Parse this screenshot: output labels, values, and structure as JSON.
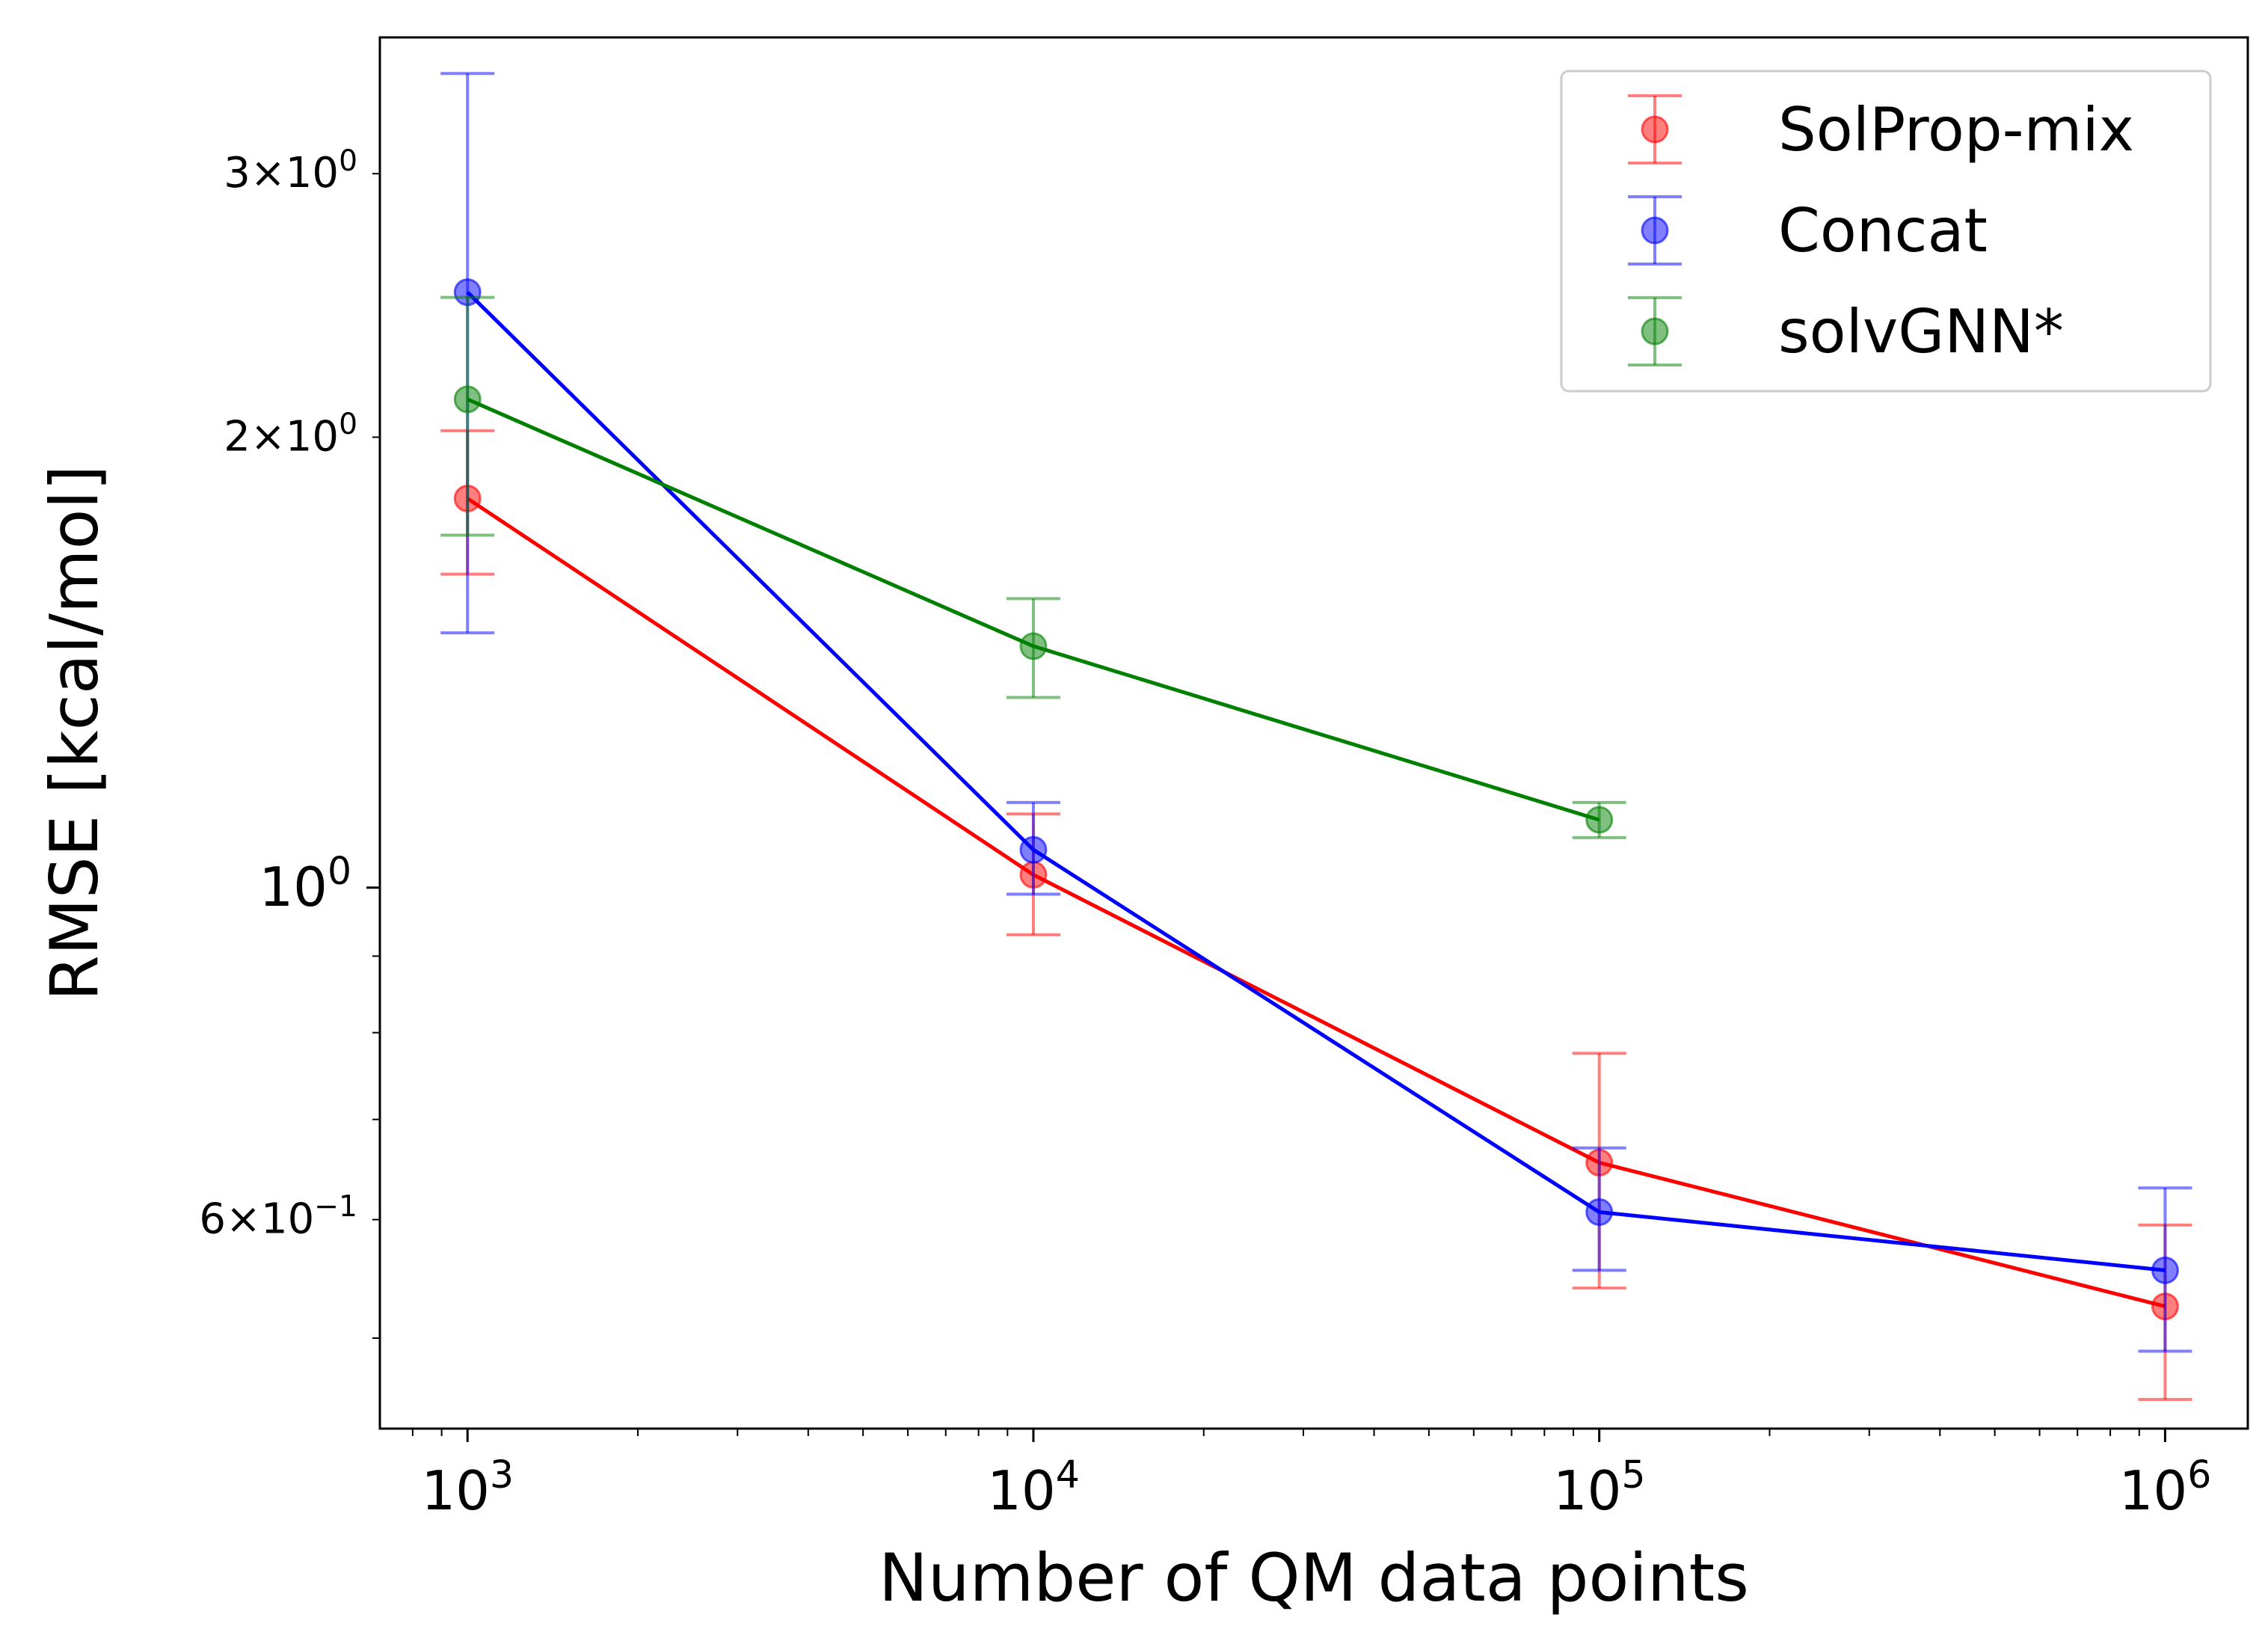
{
  "chart_data": {
    "type": "line",
    "title": "",
    "xlabel": "Number of QM data points",
    "ylabel": "RMSE [kcal/mol]",
    "xscale": "log",
    "yscale": "log",
    "xlim": [
      700,
      1400000
    ],
    "ylim": [
      0.435,
      3.7
    ],
    "x_ticks": [
      {
        "value": 1000,
        "base": "10",
        "exp": "3"
      },
      {
        "value": 10000,
        "base": "10",
        "exp": "4"
      },
      {
        "value": 100000,
        "base": "10",
        "exp": "5"
      },
      {
        "value": 1000000,
        "base": "10",
        "exp": "6"
      }
    ],
    "y_major_ticks": [
      {
        "value": 1.0,
        "base": "10",
        "exp": "0"
      }
    ],
    "y_minor_labeled_ticks": [
      {
        "value": 3.0,
        "mant": "3",
        "base": "10",
        "exp": "0"
      },
      {
        "value": 2.0,
        "mant": "2",
        "base": "10",
        "exp": "0"
      },
      {
        "value": 0.6,
        "mant": "6",
        "base": "10",
        "exp": "−1"
      }
    ],
    "y_minor_unlabeled_ticks": [
      0.5,
      0.7,
      0.8,
      0.9
    ],
    "legend": {
      "position": "top-right"
    },
    "series": [
      {
        "name": "SolProp-mix",
        "color": "#ff0000",
        "x": [
          1000,
          10000,
          100000,
          1000000
        ],
        "y": [
          1.82,
          1.02,
          0.655,
          0.525
        ],
        "yerr_low": [
          1.62,
          0.93,
          0.54,
          0.455
        ],
        "yerr_high": [
          2.02,
          1.12,
          0.775,
          0.595
        ]
      },
      {
        "name": "Concat",
        "color": "#0000ff",
        "x": [
          1000,
          10000,
          100000,
          1000000
        ],
        "y": [
          2.5,
          1.06,
          0.607,
          0.555
        ],
        "yerr_low": [
          1.48,
          0.99,
          0.555,
          0.49
        ],
        "yerr_high": [
          3.5,
          1.14,
          0.67,
          0.63
        ]
      },
      {
        "name": "solvGNN*",
        "color": "#008000",
        "x": [
          1000,
          10000,
          100000
        ],
        "y": [
          2.12,
          1.45,
          1.11
        ],
        "yerr_low": [
          1.72,
          1.34,
          1.08
        ],
        "yerr_high": [
          2.48,
          1.56,
          1.14
        ]
      }
    ]
  }
}
